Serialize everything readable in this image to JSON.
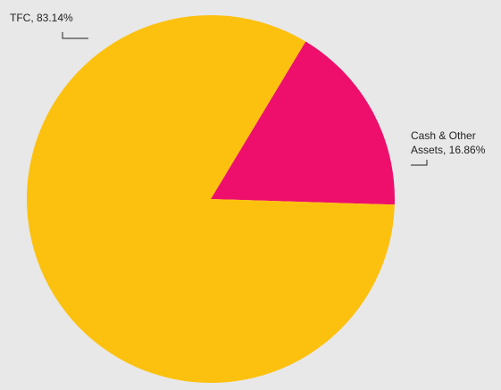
{
  "chart_data": {
    "type": "pie",
    "title": "",
    "slices": [
      {
        "label": "Cash & Other",
        "label_line2": "Assets, 16.86%",
        "value": 16.86,
        "color": "#ed0f6b"
      },
      {
        "label": "TFC, 83.14%",
        "label_line2": "",
        "value": 83.14,
        "color": "#fcc10f"
      }
    ],
    "legend": "none",
    "background": "#e8e8e9"
  }
}
